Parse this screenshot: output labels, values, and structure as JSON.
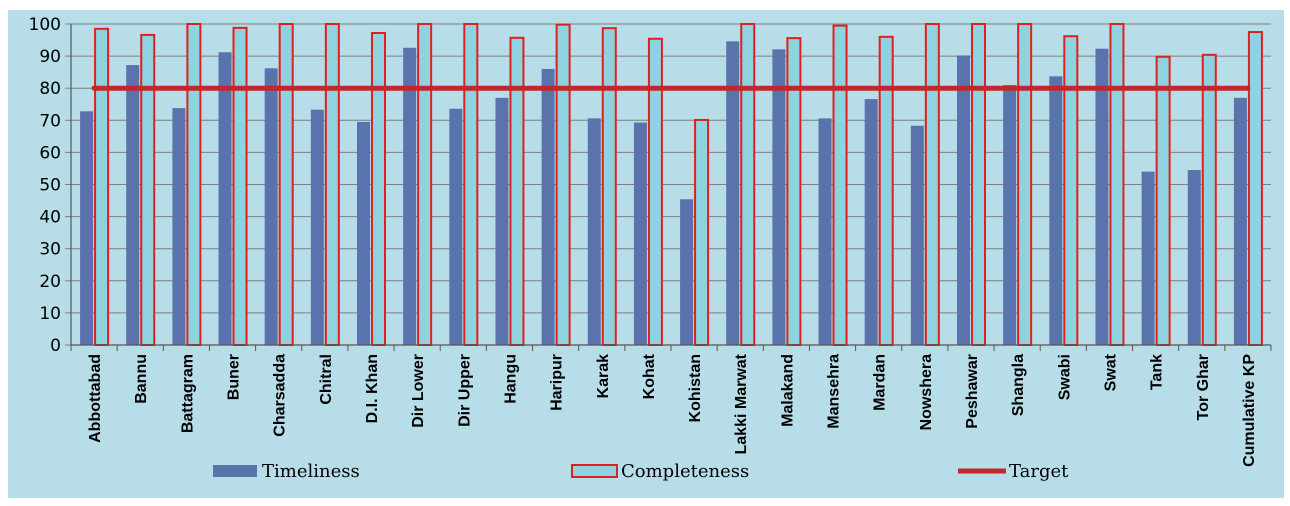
{
  "chart_data": {
    "type": "bar",
    "categories": [
      "Abbottabad",
      "Bannu",
      "Battagram",
      "Buner",
      "Charsadda",
      "Chitral",
      "D.I. Khan",
      "Dir Lower",
      "Dir Upper",
      "Hangu",
      "Haripur",
      "Karak",
      "Kohat",
      "Kohistan",
      "Lakki Marwat",
      "Malakand",
      "Mansehra",
      "Mardan",
      "Nowshera",
      "Peshawar",
      "Shangla",
      "Swabi",
      "Swat",
      "Tank",
      "Tor Ghar",
      "Cumulative KP"
    ],
    "series": [
      {
        "name": "Timeliness",
        "color": "#5b73ad",
        "values": [
          72.8,
          87.2,
          73.8,
          91.2,
          86.2,
          73.3,
          69.5,
          92.6,
          73.6,
          77.0,
          86.0,
          70.6,
          69.3,
          45.4,
          94.6,
          92.1,
          70.6,
          76.6,
          68.3,
          90.2,
          81.0,
          83.7,
          92.3,
          54.0,
          54.5,
          77.0
        ]
      },
      {
        "name": "Completeness",
        "color": "#8fd3e0",
        "values": [
          98.5,
          96.6,
          100,
          98.8,
          100,
          100,
          97.2,
          100,
          100,
          95.7,
          99.8,
          98.7,
          95.4,
          70.1,
          100,
          95.6,
          99.5,
          96.0,
          100,
          100,
          100,
          96.2,
          100,
          89.8,
          90.4,
          97.5
        ]
      },
      {
        "name": "Target",
        "color": "#c0282b",
        "values": [
          80,
          80,
          80,
          80,
          80,
          80,
          80,
          80,
          80,
          80,
          80,
          80,
          80,
          80,
          80,
          80,
          80,
          80,
          80,
          80,
          80,
          80,
          80,
          80,
          80,
          80
        ]
      }
    ],
    "ylim": [
      0,
      100
    ],
    "yticks": [
      0,
      10,
      20,
      30,
      40,
      50,
      60,
      70,
      80,
      90,
      100
    ],
    "grid": true,
    "legend": "bottom",
    "completeness_border": "#e0201c"
  }
}
